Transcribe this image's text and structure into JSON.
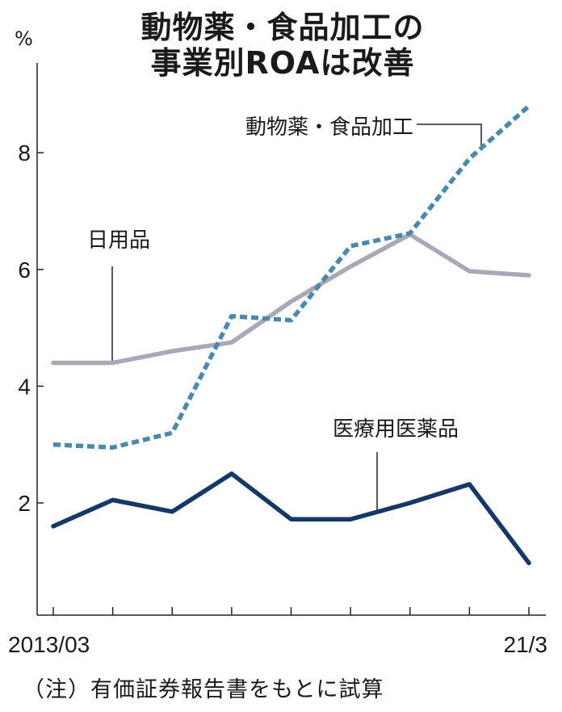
{
  "chart_data": {
    "type": "line",
    "title": "動物薬・食品加工の事業別ROAは改善",
    "title_lines": [
      "動物薬・食品加工の",
      "事業別ROAは改善"
    ],
    "ylabel": "%",
    "ylim": [
      0,
      9.5
    ],
    "yticks": [
      2,
      4,
      6,
      8
    ],
    "ytick_labels": [
      "2",
      "4",
      "6",
      "8"
    ],
    "x": [
      "2013/03",
      "2014/03",
      "2015/03",
      "2016/03",
      "2017/03",
      "2018/03",
      "2019/03",
      "2020/03",
      "2021/03"
    ],
    "x_tick_labels": [
      "2013/03",
      "21/3"
    ],
    "grid": false,
    "series": [
      {
        "name": "日用品",
        "values": [
          4.4,
          4.4,
          4.6,
          4.75,
          5.45,
          6.05,
          6.6,
          5.97,
          5.9
        ],
        "color": "#a9a8b6",
        "style": "solid"
      },
      {
        "name": "動物薬・食品加工",
        "values": [
          3.0,
          2.95,
          3.2,
          5.2,
          5.13,
          6.4,
          6.62,
          7.9,
          8.8
        ],
        "color": "#4a88ad",
        "style": "dashed"
      },
      {
        "name": "医療用医薬品",
        "values": [
          1.6,
          2.05,
          1.85,
          2.5,
          1.72,
          1.72,
          2.0,
          2.32,
          0.97
        ],
        "color": "#173866",
        "style": "solid"
      }
    ],
    "note": "（注）有価証券報告書をもとに試算"
  }
}
